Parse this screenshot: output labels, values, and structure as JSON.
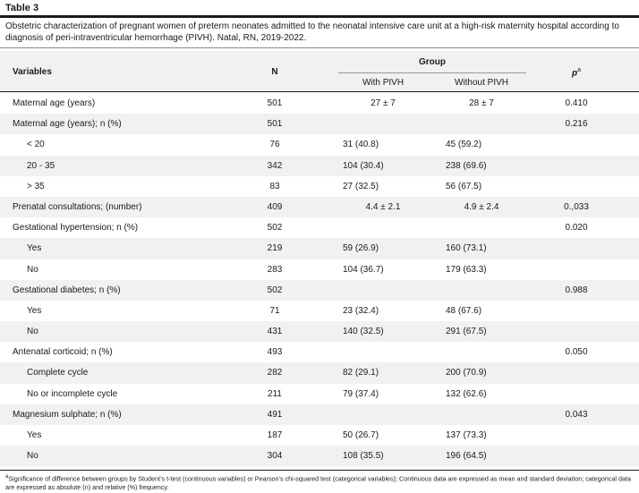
{
  "table_label": "Table 3",
  "caption": "Obstetric characterization of pregnant women of preterm neonates admitted to the neonatal intensive care unit at a high-risk maternity hospital according to diagnosis of peri-intraventricular hemorrhage (PIVH). Natal, RN, 2019-2022.",
  "header": {
    "variables": "Variables",
    "n": "N",
    "group": "Group",
    "with_pivh": "With PIVH",
    "without_pivh": "Without PIVH",
    "p": "p",
    "p_sup": "a"
  },
  "rows": [
    {
      "label": "Maternal age (years)",
      "n": "501",
      "with": "27 ± 7",
      "without": "28 ± 7",
      "p": "0.410",
      "sub": false,
      "center": true
    },
    {
      "label": "Maternal age (years); n (%)",
      "n": "501",
      "with": "",
      "without": "",
      "p": "0.216",
      "sub": false,
      "center": false
    },
    {
      "label": "< 20",
      "n": "76",
      "with": "31 (40.8)",
      "without": "45 (59.2)",
      "p": "",
      "sub": true,
      "center": false
    },
    {
      "label": "20 - 35",
      "n": "342",
      "with": "104 (30.4)",
      "without": "238 (69.6)",
      "p": "",
      "sub": true,
      "center": false
    },
    {
      "label": "> 35",
      "n": "83",
      "with": "27 (32.5)",
      "without": "56 (67.5)",
      "p": "",
      "sub": true,
      "center": false
    },
    {
      "label": "Prenatal consultations; (number)",
      "n": "409",
      "with": "4.4 ± 2.1",
      "without": "4.9 ± 2.4",
      "p": "0.,033",
      "sub": false,
      "center": true
    },
    {
      "label": "Gestational hypertension; n (%)",
      "n": "502",
      "with": "",
      "without": "",
      "p": "0.020",
      "sub": false,
      "center": false
    },
    {
      "label": "Yes",
      "n": "219",
      "with": "59 (26.9)",
      "without": "160 (73.1)",
      "p": "",
      "sub": true,
      "center": false
    },
    {
      "label": "No",
      "n": "283",
      "with": "104 (36.7)",
      "without": "179 (63.3)",
      "p": "",
      "sub": true,
      "center": false
    },
    {
      "label": "Gestational diabetes; n (%)",
      "n": "502",
      "with": "",
      "without": "",
      "p": "0.988",
      "sub": false,
      "center": false
    },
    {
      "label": "Yes",
      "n": "71",
      "with": "23 (32.4)",
      "without": "48 (67.6)",
      "p": "",
      "sub": true,
      "center": false
    },
    {
      "label": "No",
      "n": "431",
      "with": "140 (32.5)",
      "without": "291 (67.5)",
      "p": "",
      "sub": true,
      "center": false
    },
    {
      "label": "Antenatal corticoid; n (%)",
      "n": "493",
      "with": "",
      "without": "",
      "p": "0.050",
      "sub": false,
      "center": false
    },
    {
      "label": "Complete cycle",
      "n": "282",
      "with": "82 (29.1)",
      "without": "200 (70.9)",
      "p": "",
      "sub": true,
      "center": false
    },
    {
      "label": "No or incomplete cycle",
      "n": "211",
      "with": "79 (37.4)",
      "without": "132 (62.6)",
      "p": "",
      "sub": true,
      "center": false
    },
    {
      "label": "Magnesium sulphate; n (%)",
      "n": "491",
      "with": "",
      "without": "",
      "p": "0.043",
      "sub": false,
      "center": false
    },
    {
      "label": "Yes",
      "n": "187",
      "with": "50 (26.7)",
      "without": "137 (73.3)",
      "p": "",
      "sub": true,
      "center": false
    },
    {
      "label": "No",
      "n": "304",
      "with": "108 (35.5)",
      "without": "196 (64.5)",
      "p": "",
      "sub": true,
      "center": false
    }
  ],
  "footnote": {
    "sup": "a",
    "text": "Significance of difference between groups by Student’s t-test (continuous variables) or Pearson’s chi-squared test (categorical variables); Continuous data are expressed as mean and standard deviation; categorical data are expressed as absolute (n) and relative (%) frequency."
  }
}
